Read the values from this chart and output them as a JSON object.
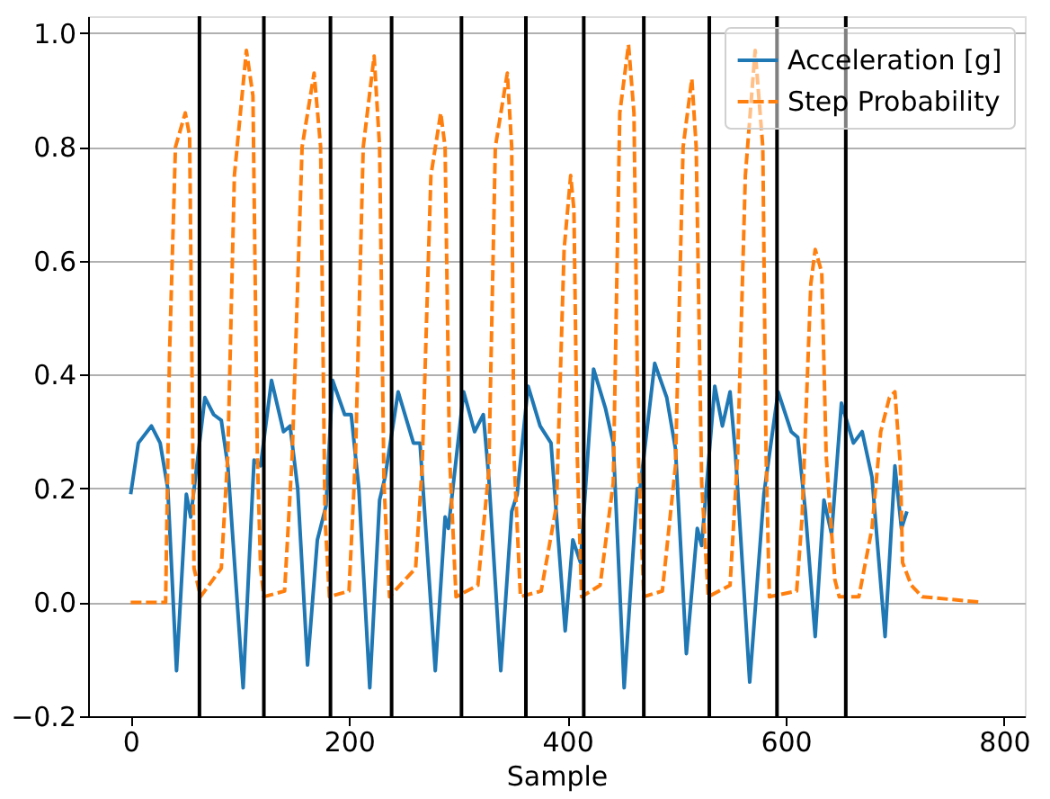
{
  "chart_data": {
    "type": "line",
    "xlabel": "Sample",
    "xlim": [
      -39,
      819
    ],
    "ylim": [
      -0.2,
      1.03
    ],
    "xticks": [
      0,
      200,
      400,
      600,
      800
    ],
    "yticks": [
      {
        "value": -0.2,
        "label": "−0.2"
      },
      {
        "value": 0,
        "label": "0.0"
      },
      {
        "value": 0.2,
        "label": "0.2"
      },
      {
        "value": 0.4,
        "label": "0.4"
      },
      {
        "value": 0.6,
        "label": "0.6"
      },
      {
        "value": 0.8,
        "label": "0.8"
      },
      {
        "value": 1.0,
        "label": "1.0"
      }
    ],
    "grid": "y",
    "legend": "top right",
    "series": [
      {
        "name": "Acceleration [g]",
        "color": "#1f77b4",
        "line_style": "solid",
        "x": [
          0,
          7,
          19,
          27,
          34,
          42,
          51,
          55,
          68,
          76,
          83,
          89,
          103,
          113,
          119,
          129,
          140,
          146,
          153,
          162,
          171,
          179,
          185,
          196,
          202,
          209,
          219,
          228,
          233,
          245,
          259,
          265,
          279,
          288,
          291,
          305,
          315,
          323,
          328,
          339,
          349,
          354,
          364,
          375,
          385,
          398,
          405,
          412,
          424,
          435,
          442,
          452,
          464,
          466,
          480,
          491,
          499,
          509,
          519,
          523,
          535,
          542,
          549,
          554,
          567,
          580,
          593,
          605,
          611,
          618,
          627,
          635,
          642,
          651,
          662,
          670,
          679,
          691,
          700,
          706,
          711
        ],
        "values": [
          0.19,
          0.28,
          0.31,
          0.28,
          0.2,
          -0.12,
          0.19,
          0.15,
          0.36,
          0.33,
          0.32,
          0.24,
          -0.15,
          0.25,
          0.24,
          0.39,
          0.3,
          0.31,
          0.2,
          -0.11,
          0.11,
          0.17,
          0.39,
          0.33,
          0.33,
          0.2,
          -0.15,
          0.18,
          0.22,
          0.37,
          0.28,
          0.28,
          -0.12,
          0.15,
          0.13,
          0.37,
          0.3,
          0.33,
          0.22,
          -0.12,
          0.16,
          0.19,
          0.38,
          0.31,
          0.28,
          -0.05,
          0.11,
          0.07,
          0.41,
          0.34,
          0.28,
          -0.15,
          0.2,
          0.19,
          0.42,
          0.36,
          0.27,
          -0.09,
          0.13,
          0.1,
          0.38,
          0.31,
          0.37,
          0.26,
          -0.14,
          0.19,
          0.37,
          0.3,
          0.29,
          0.16,
          -0.06,
          0.18,
          0.12,
          0.35,
          0.28,
          0.3,
          0.22,
          -0.06,
          0.24,
          0.13,
          0.16
        ]
      },
      {
        "name": "Step Probability",
        "color": "#ff7f0e",
        "line_style": "dashed",
        "x": [
          0,
          32,
          35.5,
          41,
          50,
          54,
          58,
          64,
          83,
          89,
          95,
          106,
          112,
          116,
          119,
          122,
          141,
          148,
          157,
          168,
          174,
          178,
          182,
          200,
          206,
          213,
          223,
          228,
          232,
          237,
          261,
          267,
          275,
          284,
          288,
          292,
          298,
          318,
          328,
          334,
          345,
          349,
          351,
          357,
          376,
          390,
          397,
          403,
          406,
          409,
          413,
          430,
          442,
          448,
          456,
          461,
          465,
          470,
          487,
          499,
          506,
          514,
          518,
          523,
          529,
          549,
          556,
          563,
          572,
          579,
          582,
          585,
          610,
          615,
          623,
          627,
          633,
          637,
          645,
          649,
          667,
          679,
          687,
          695,
          700,
          705,
          707,
          715,
          725,
          780
        ],
        "values": [
          0,
          0,
          0.43,
          0.8,
          0.86,
          0.82,
          0.06,
          0.01,
          0.06,
          0.26,
          0.75,
          0.97,
          0.89,
          0.26,
          0.06,
          0.01,
          0.02,
          0.26,
          0.8,
          0.93,
          0.8,
          0.15,
          0.01,
          0.02,
          0.26,
          0.8,
          0.96,
          0.8,
          0.21,
          0.01,
          0.06,
          0.24,
          0.75,
          0.86,
          0.8,
          0.26,
          0.01,
          0.03,
          0.23,
          0.8,
          0.93,
          0.8,
          0.26,
          0.01,
          0.02,
          0.17,
          0.62,
          0.75,
          0.69,
          0.26,
          0.01,
          0.03,
          0.21,
          0.86,
          0.98,
          0.86,
          0.26,
          0.01,
          0.02,
          0.24,
          0.8,
          0.92,
          0.8,
          0.21,
          0.01,
          0.03,
          0.26,
          0.75,
          0.97,
          0.8,
          0.26,
          0.01,
          0.02,
          0.15,
          0.56,
          0.62,
          0.58,
          0.26,
          0.04,
          0.01,
          0.01,
          0.13,
          0.3,
          0.36,
          0.37,
          0.24,
          0.07,
          0.03,
          0.01,
          0
        ]
      }
    ],
    "ref_lines": [
      {
        "axis": "x",
        "value": 63,
        "color": "#000000"
      },
      {
        "axis": "x",
        "value": 122,
        "color": "#000000"
      },
      {
        "axis": "x",
        "value": 183,
        "color": "#000000"
      },
      {
        "axis": "x",
        "value": 239,
        "color": "#000000"
      },
      {
        "axis": "x",
        "value": 303,
        "color": "#000000"
      },
      {
        "axis": "x",
        "value": 362,
        "color": "#000000"
      },
      {
        "axis": "x",
        "value": 415,
        "color": "#000000"
      },
      {
        "axis": "x",
        "value": 470,
        "color": "#000000"
      },
      {
        "axis": "x",
        "value": 530,
        "color": "#000000"
      },
      {
        "axis": "x",
        "value": 592,
        "color": "#000000"
      },
      {
        "axis": "x",
        "value": 655,
        "color": "#000000"
      }
    ]
  }
}
